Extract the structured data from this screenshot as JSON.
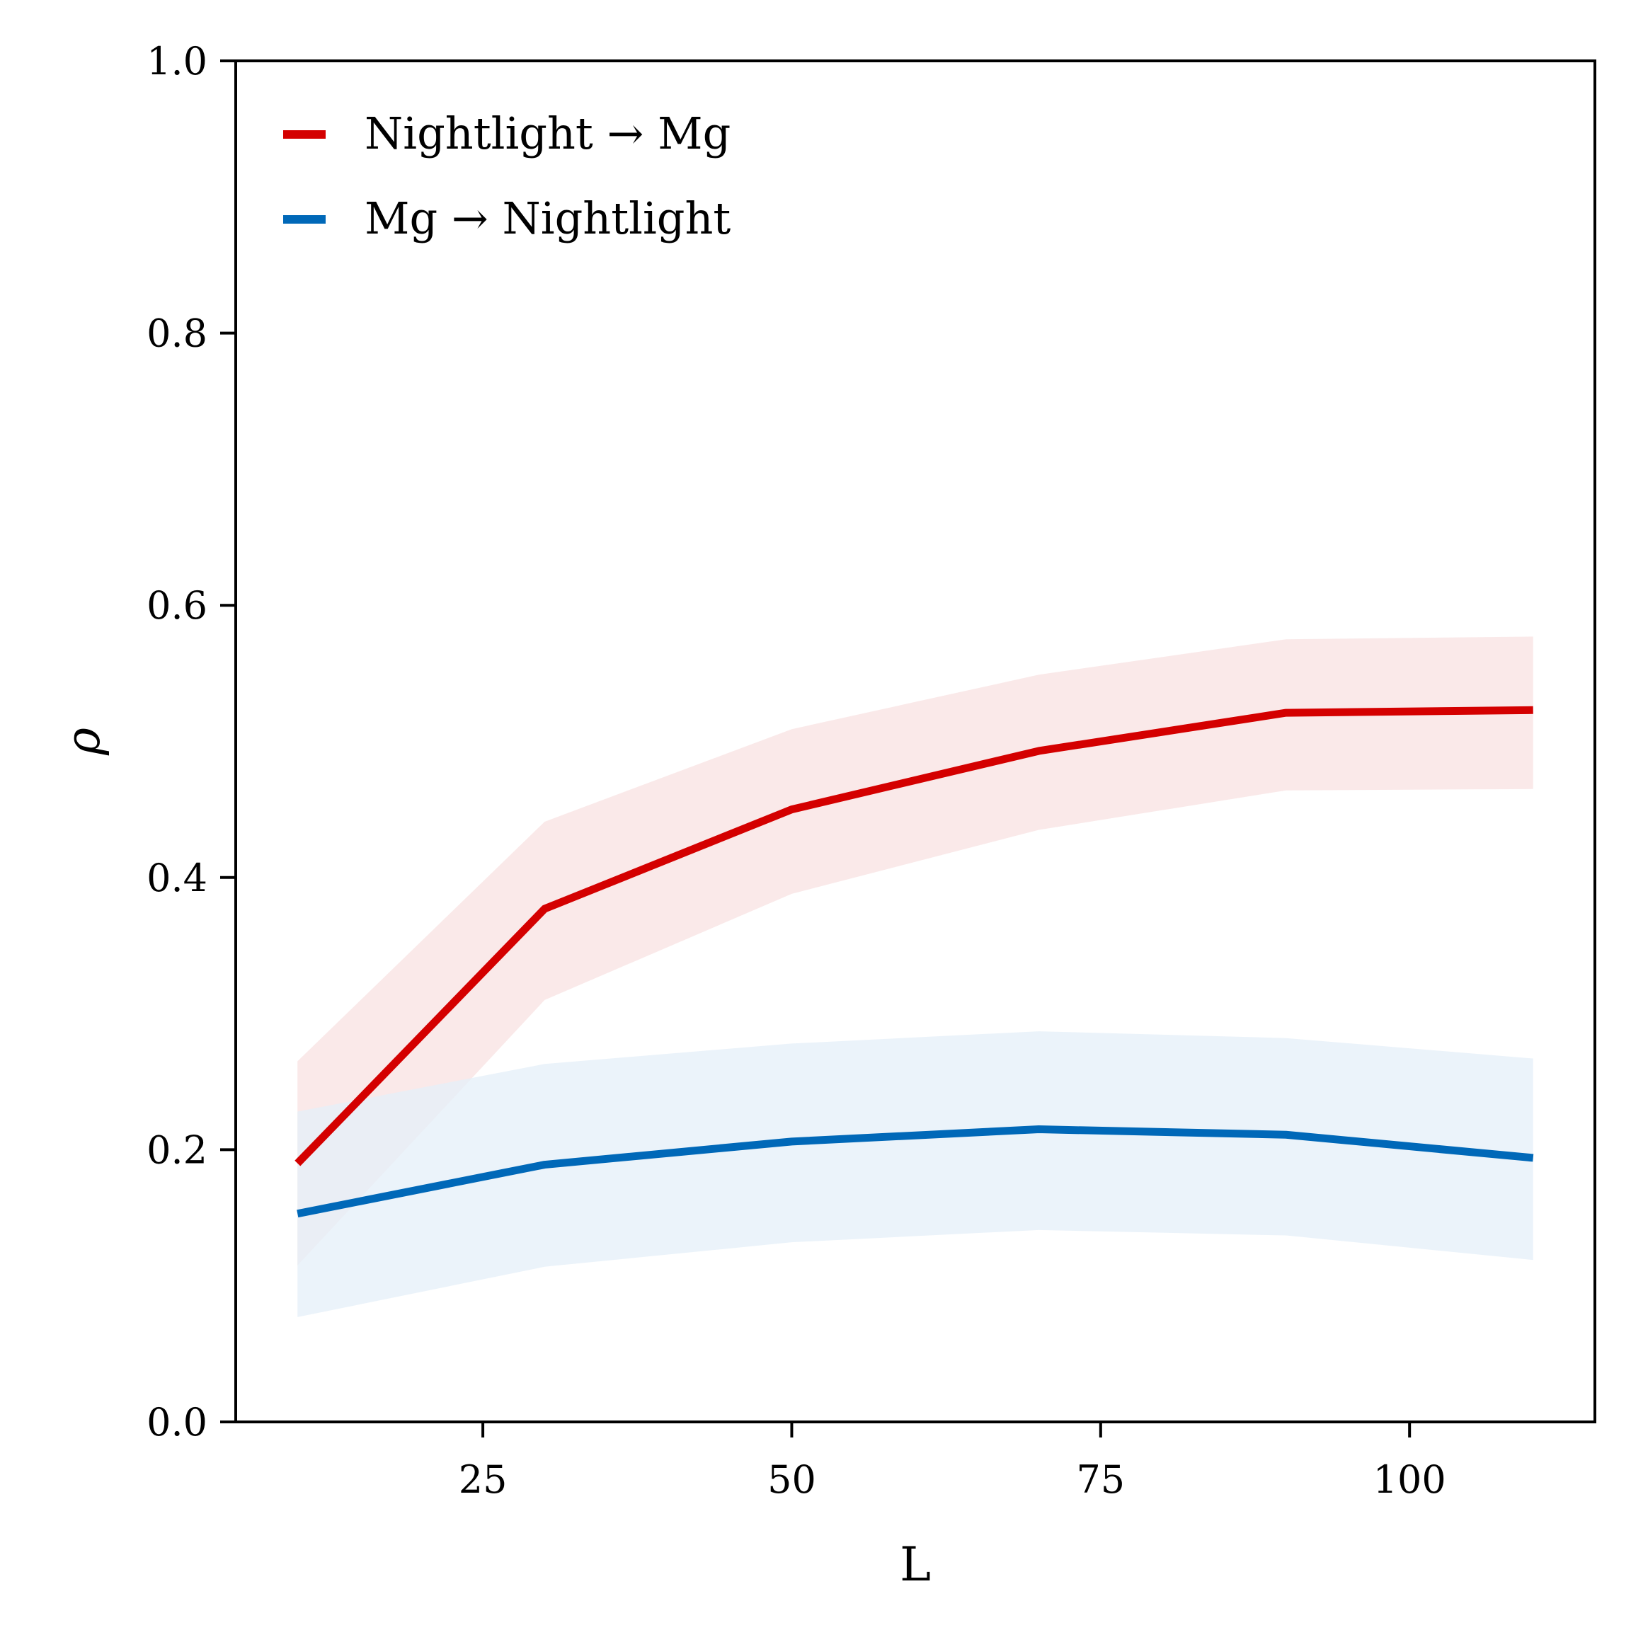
{
  "chart_data": {
    "type": "line",
    "title": "",
    "xlabel": "L",
    "ylabel": "ρ",
    "xlim": [
      5,
      115
    ],
    "ylim": [
      0.0,
      1.0
    ],
    "xticks": [
      25,
      50,
      75,
      100
    ],
    "xtick_labels": [
      "25",
      "50",
      "75",
      "100"
    ],
    "yticks": [
      0.0,
      0.2,
      0.4,
      0.6,
      0.8,
      1.0
    ],
    "ytick_labels": [
      "0.0",
      "0.2",
      "0.4",
      "0.6",
      "0.8",
      "1.0"
    ],
    "grid": false,
    "legend": {
      "position": "top-left"
    },
    "x": [
      10,
      30,
      50,
      70,
      90,
      110
    ],
    "series": [
      {
        "name": "Nightlight → Mg",
        "color": "#d40000",
        "band_color": "#f8e2e2",
        "values": [
          0.19,
          0.377,
          0.45,
          0.493,
          0.521,
          0.523
        ],
        "lower": [
          0.115,
          0.31,
          0.388,
          0.435,
          0.464,
          0.465
        ],
        "upper": [
          0.265,
          0.441,
          0.509,
          0.549,
          0.575,
          0.577
        ]
      },
      {
        "name": "Mg → Nightlight",
        "color": "#0068b8",
        "band_color": "#e4eff8",
        "values": [
          0.153,
          0.189,
          0.206,
          0.215,
          0.211,
          0.194
        ],
        "lower": [
          0.077,
          0.114,
          0.132,
          0.141,
          0.137,
          0.119
        ],
        "upper": [
          0.228,
          0.263,
          0.278,
          0.287,
          0.282,
          0.267
        ]
      }
    ]
  }
}
